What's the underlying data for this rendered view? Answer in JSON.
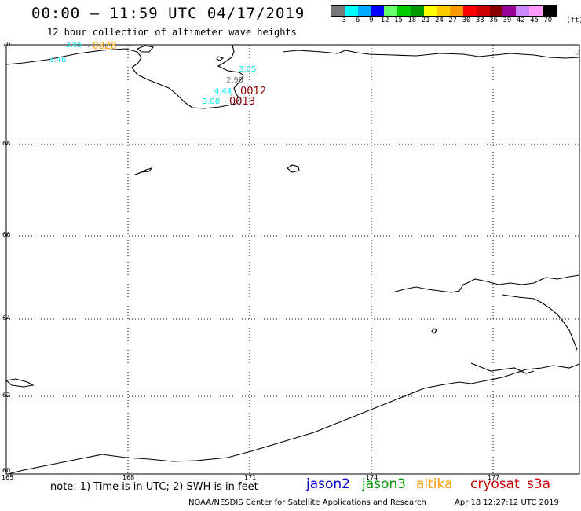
{
  "header": {
    "title": "00:00 – 11:59 UTC 04/17/2019",
    "subtitle": "12 hour collection of altimeter wave heights"
  },
  "legend": {
    "colors": [
      "#777777",
      "#00ffff",
      "#00aaff",
      "#0000ff",
      "#66ff66",
      "#00cc00",
      "#009900",
      "#ffff00",
      "#ffcc00",
      "#ff9900",
      "#ff0000",
      "#cc0000",
      "#880000",
      "#990099",
      "#cc88ff",
      "#ff99ff",
      "#000000"
    ],
    "labels": [
      "3",
      "6",
      "9",
      "12",
      "15",
      "18",
      "21",
      "24",
      "27",
      "30",
      "33",
      "36",
      "39",
      "42",
      "45",
      "70",
      "(ft)"
    ]
  },
  "axes": {
    "lon_labels": [
      "165",
      "168",
      "171",
      "174",
      "177"
    ],
    "lat_labels": [
      "70",
      "68",
      "66",
      "64",
      "62",
      "60"
    ],
    "right_edge_label": "0"
  },
  "observations": [
    {
      "text": "3.05",
      "color": "#00e5ee"
    },
    {
      "text": "0828",
      "color": "#ff9900"
    },
    {
      "text": "3.46",
      "color": "#00e5ee"
    },
    {
      "text": "3.05",
      "color": "#00e5ee"
    },
    {
      "text": "2.99",
      "color": "#777777"
    },
    {
      "text": "4.44",
      "color": "#00e5ee"
    },
    {
      "text": "0012",
      "color": "#880000"
    },
    {
      "text": "3.08",
      "color": "#00e5ee"
    },
    {
      "text": "0013",
      "color": "#880000"
    }
  ],
  "footer": {
    "note": "note: 1) Time is in UTC; 2) SWH is in feet",
    "missions": [
      {
        "name": "jason2",
        "color": "#0000cc"
      },
      {
        "name": "jason3",
        "color": "#009900"
      },
      {
        "name": "altika",
        "color": "#ff9900"
      },
      {
        "name": "cryosat",
        "color": "#cc0000"
      },
      {
        "name": "s3a",
        "color": "#cc0000"
      }
    ],
    "credit": "NOAA/NESDIS Center for Satellite Applications and Research",
    "generated": "Apr 18 12:27:12 UTC 2019"
  }
}
